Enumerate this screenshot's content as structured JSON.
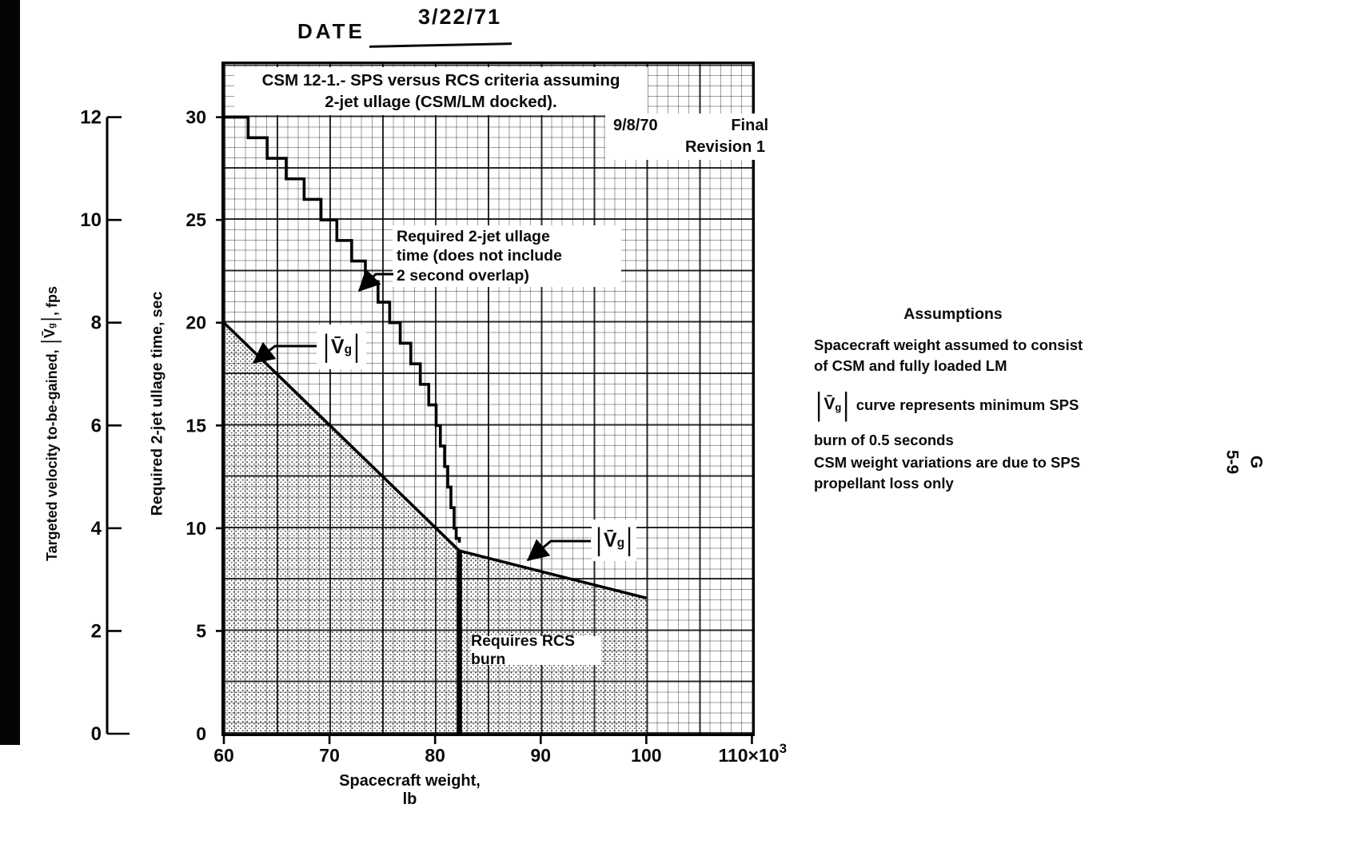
{
  "page": {
    "date_label": "DATE",
    "date_value": "3/22/71",
    "page_number_line1": "G",
    "page_number_line2": "5-9"
  },
  "figure": {
    "title_line1": "CSM 12-1.- SPS versus RCS criteria assuming",
    "title_line2": "2-jet ullage (CSM/LM docked).",
    "revision_date": "9/8/70",
    "revision_status": "Final",
    "revision_line2": "Revision 1",
    "annotations": {
      "ullage_note_line1": "Required 2-jet ullage",
      "ullage_note_line2": "time (does not include",
      "ullage_note_line3": "2 second overlap)",
      "rcs_note": "Requires RCS burn"
    },
    "vg_symbol": {
      "open": "|",
      "v": "V̄",
      "sub": "g",
      "close": "|"
    },
    "ylabel_outer_pre": "Targeted velocity to-be-gained, ",
    "ylabel_outer_post": ", fps",
    "ylabel_inner": "Required 2-jet ullage time, sec",
    "xlabel": "Spacecraft weight, lb"
  },
  "assumptions": {
    "heading": "Assumptions",
    "a1_line1": "Spacecraft weight assumed to consist",
    "a1_line2": "of CSM and fully loaded LM",
    "a2_after": " curve represents minimum SPS",
    "a2_line2": "burn of 0.5 seconds",
    "a3_line1": "CSM weight variations are due to SPS",
    "a3_line2": "propellant loss only"
  },
  "chart_data": {
    "type": "line",
    "title": "CSM 12-1.- SPS versus RCS criteria assuming 2-jet ullage (CSM/LM docked)",
    "xlabel": "Spacecraft weight, lb",
    "x_unit": "×10³ lb",
    "xlim": [
      60,
      110
    ],
    "x_ticks": [
      60,
      70,
      80,
      90,
      100,
      110
    ],
    "x_suffix": {
      "mult": "×10",
      "exp": "3"
    },
    "grid": "fine graph paper, majors every 5 minor squares",
    "y_outer": {
      "label": "Targeted velocity to-be-gained, |V̄g|, fps",
      "lim": [
        0,
        12
      ],
      "ticks": [
        0,
        2,
        4,
        6,
        8,
        10,
        12
      ]
    },
    "y_inner": {
      "label": "Required 2-jet ullage time, sec",
      "lim": [
        0,
        30
      ],
      "ticks": [
        0,
        5,
        10,
        15,
        20,
        25,
        30
      ]
    },
    "series": [
      {
        "name": "Required 2-jet ullage time (does not include 2 second overlap)",
        "style": "staircase",
        "units": "sec versus 10³ lb",
        "points": [
          [
            60,
            30
          ],
          [
            62.3,
            29
          ],
          [
            64.1,
            28
          ],
          [
            65.9,
            27
          ],
          [
            67.6,
            26
          ],
          [
            69.2,
            25
          ],
          [
            70.7,
            24
          ],
          [
            72.1,
            23
          ],
          [
            73.4,
            22
          ],
          [
            74.6,
            21
          ],
          [
            75.7,
            20
          ],
          [
            76.7,
            19
          ],
          [
            77.7,
            18
          ],
          [
            78.6,
            17
          ],
          [
            79.4,
            16
          ],
          [
            80.1,
            15
          ],
          [
            80.5,
            14
          ],
          [
            80.9,
            13
          ],
          [
            81.2,
            12
          ],
          [
            81.5,
            11
          ],
          [
            81.8,
            10
          ],
          [
            82.0,
            9.5
          ],
          [
            82.3,
            9.3
          ]
        ]
      },
      {
        "name": "|V̄g| curve (minimum SPS burn of 0.5 seconds)",
        "style": "line",
        "units": "fps versus 10³ lb",
        "points": [
          [
            60,
            8.0
          ],
          [
            82.3,
            3.56
          ],
          [
            100,
            2.64
          ]
        ]
      }
    ],
    "rcs_boundary": {
      "x": 82.3,
      "label": "Requires RCS burn",
      "note": "heavy vertical line; region right/below requires RCS burn"
    },
    "shaded_region": "stippled area below |V̄g| curve from 60×10³ to 100×10³ lb down to 0"
  }
}
